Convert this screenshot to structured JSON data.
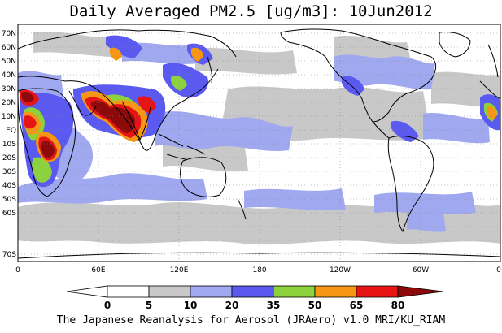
{
  "title": "Daily Averaged PM2.5 [ug/m3]: 10Jun2012",
  "footer": "The Japanese Reanalysis for Aerosol (JRAero) v1.0 MRI/KU_RIAM",
  "lat_ticks": [
    "70N",
    "60N",
    "50N",
    "40N",
    "30N",
    "20N",
    "10N",
    "EQ",
    "10S",
    "20S",
    "30S",
    "40S",
    "50S",
    "60S",
    "70S"
  ],
  "lon_ticks": [
    "0",
    "60E",
    "120E",
    "180",
    "120W",
    "60W",
    "0"
  ],
  "colorbar": {
    "labels": [
      "0",
      "5",
      "10",
      "20",
      "35",
      "50",
      "65",
      "80"
    ],
    "colors": [
      "#ffffff",
      "#c8c8c8",
      "#a0a8f0",
      "#5a5af0",
      "#8cd23c",
      "#f59614",
      "#e61414",
      "#8c0a0a"
    ]
  },
  "colors": {
    "very_low": "#c8c8c8",
    "low": "#a0a8f0",
    "moderate": "#5a5af0",
    "elevated": "#8cd23c",
    "high": "#f59614",
    "very_high": "#e61414",
    "extreme": "#8c0a0a"
  }
}
